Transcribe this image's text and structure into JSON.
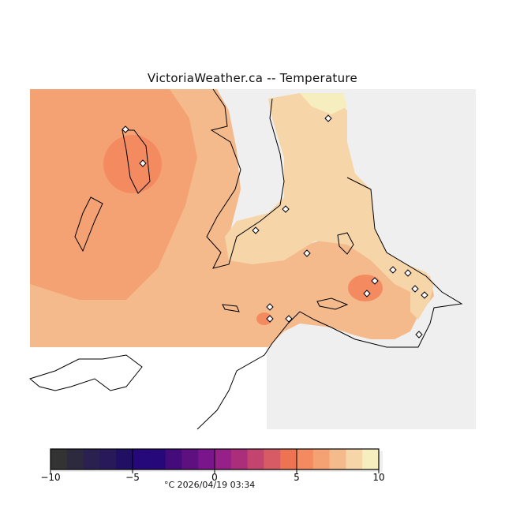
{
  "title": "VictoriaWeather.ca  --  Temperature",
  "colorbar": {
    "min": -10,
    "max": 10,
    "step": 1,
    "tick_labels": [
      "−10",
      "−5",
      "0",
      "5",
      "10"
    ],
    "tick_values": [
      -10,
      -5,
      0,
      5,
      10
    ],
    "colors": [
      "#333333",
      "#2d2a40",
      "#2b2150",
      "#28195a",
      "#200f62",
      "#25087a",
      "#26087a",
      "#440b7a",
      "#5e1080",
      "#7b158b",
      "#962088",
      "#ab2e7a",
      "#c3446e",
      "#d75b64",
      "#ee7352",
      "#f48b60",
      "#f4a273",
      "#f5ba8c",
      "#f6d5a8",
      "#f7eec0"
    ],
    "caption": "°C  2026/04/19 03:34"
  },
  "map": {
    "land_color": "#efefef",
    "nodata_color": "#ffffff"
  }
}
